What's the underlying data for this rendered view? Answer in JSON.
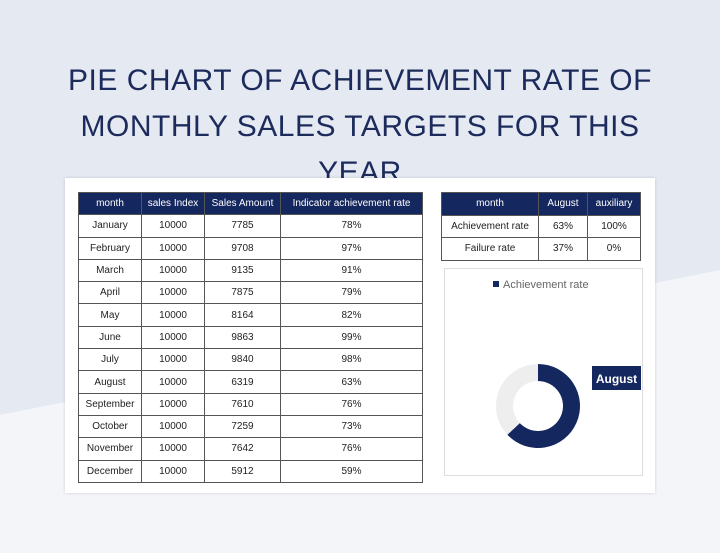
{
  "title": "PIE CHART OF ACHIEVEMENT RATE OF MONTHLY SALES TARGETS FOR THIS YEAR",
  "table": {
    "header": [
      "month",
      "sales Index",
      "Sales Amount",
      "Indicator achievement rate"
    ],
    "rows": [
      [
        "January",
        "10000",
        "7785",
        "78%"
      ],
      [
        "February",
        "10000",
        "9708",
        "97%"
      ],
      [
        "March",
        "10000",
        "9135",
        "91%"
      ],
      [
        "April",
        "10000",
        "7875",
        "79%"
      ],
      [
        "May",
        "10000",
        "8164",
        "82%"
      ],
      [
        "June",
        "10000",
        "9863",
        "99%"
      ],
      [
        "July",
        "10000",
        "9840",
        "98%"
      ],
      [
        "August",
        "10000",
        "6319",
        "63%"
      ],
      [
        "September",
        "10000",
        "7610",
        "76%"
      ],
      [
        "October",
        "10000",
        "7259",
        "73%"
      ],
      [
        "November",
        "10000",
        "7642",
        "76%"
      ],
      [
        "December",
        "10000",
        "5912",
        "59%"
      ]
    ]
  },
  "summary_table": {
    "header": [
      "month",
      "August",
      "auxiliary"
    ],
    "rows": [
      [
        "Achievement rate",
        "63%",
        "100%"
      ],
      [
        "Failure rate",
        "37%",
        "0%"
      ]
    ]
  },
  "chart": {
    "type": "doughnut",
    "legend": "Achievement rate",
    "label": "August",
    "values": [
      63,
      37
    ],
    "colors": [
      "#14275e",
      "#eeeeee"
    ]
  }
}
